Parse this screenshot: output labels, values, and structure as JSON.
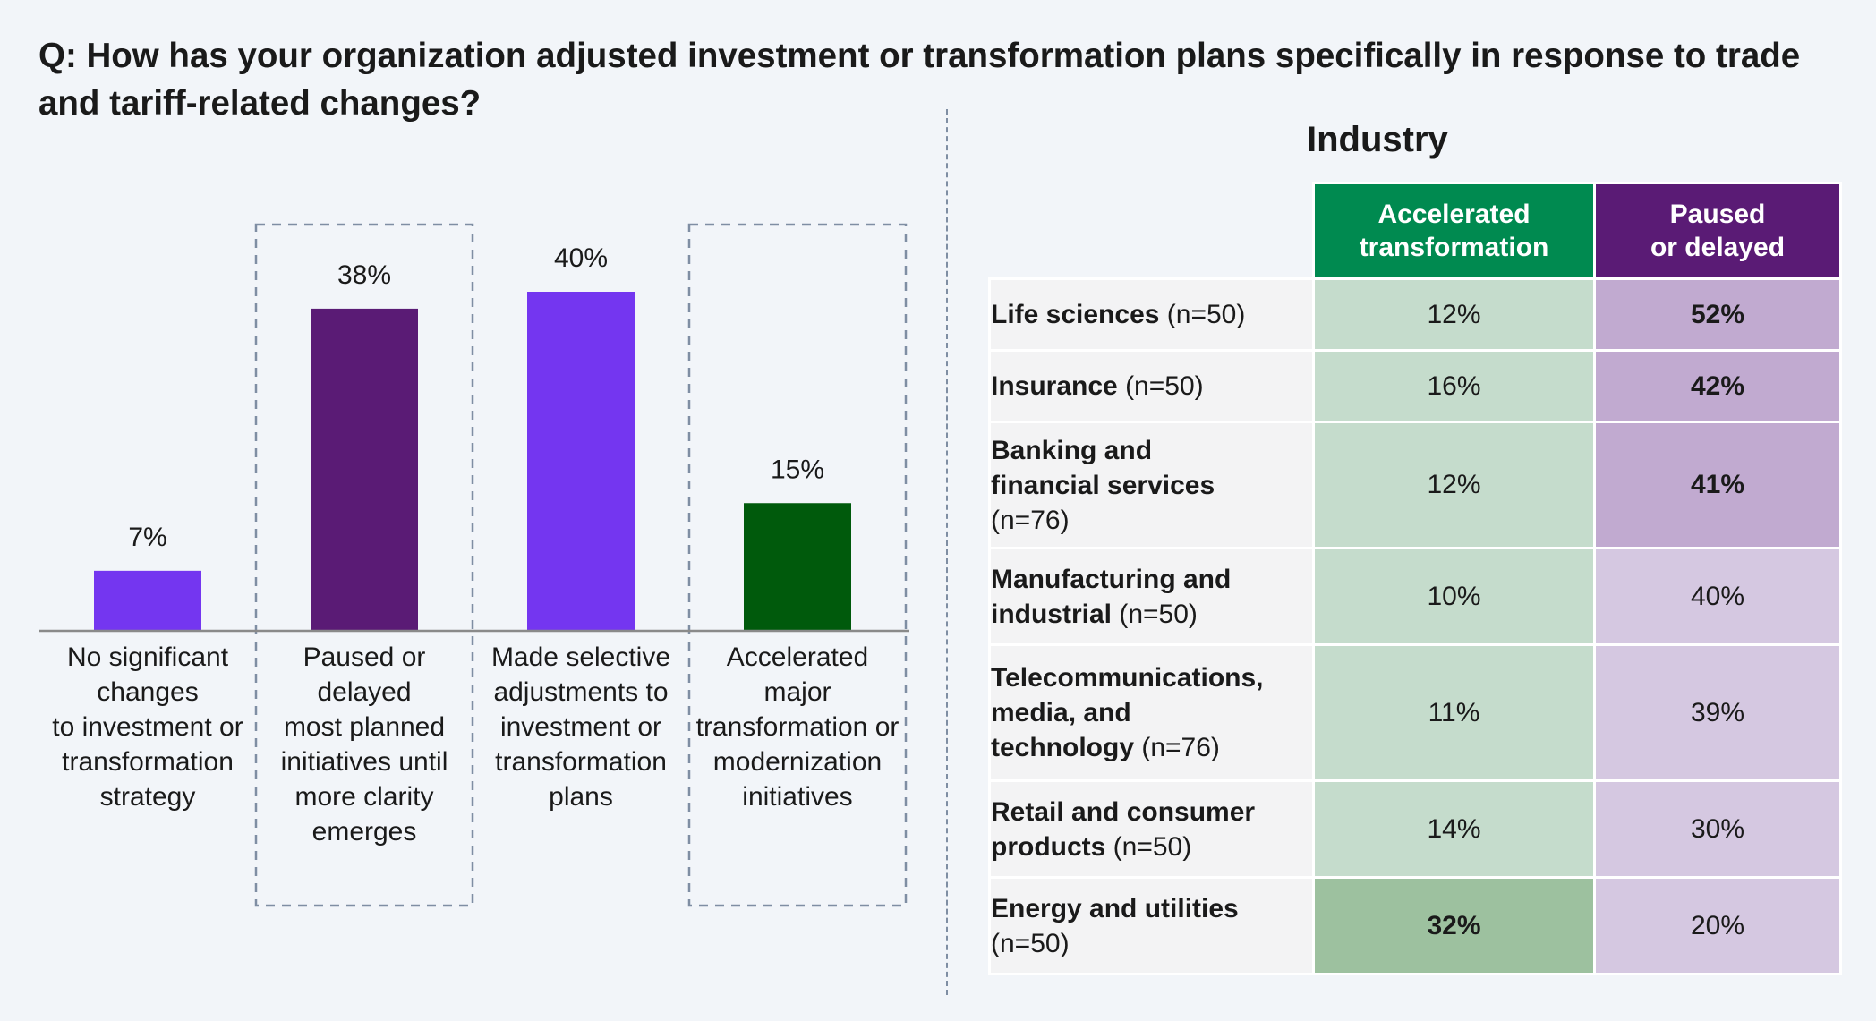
{
  "question": "Q: How has your organization adjusted investment or transformation plans specifically in response to trade and tariff-related changes?",
  "chart_data": [
    {
      "type": "bar",
      "categories": [
        "No significant changes to investment or transformation strategy",
        "Paused or delayed most planned initiatives until more clarity emerges",
        "Made selective adjustments to investment or transformation plans",
        "Accelerated major transformation or modernization initiatives"
      ],
      "category_lines": [
        [
          "No significant",
          "changes",
          "to investment or",
          "transformation",
          "strategy"
        ],
        [
          "Paused or",
          "delayed",
          "most planned",
          "initiatives until",
          "more clarity",
          "emerges"
        ],
        [
          "Made selective",
          "adjustments to",
          "investment or",
          "transformation",
          "plans"
        ],
        [
          "Accelerated",
          "major",
          "transformation or",
          "modernization",
          "initiatives"
        ]
      ],
      "values": [
        7,
        38,
        40,
        15
      ],
      "value_labels": [
        "7%",
        "38%",
        "40%",
        "15%"
      ],
      "colors": [
        "#7436f0",
        "#5a1b75",
        "#7436f0",
        "#005a0c"
      ],
      "highlighted": [
        false,
        true,
        false,
        true
      ],
      "ylim": [
        0,
        40
      ],
      "title": "",
      "xlabel": "",
      "ylabel": ""
    },
    {
      "type": "table",
      "title": "Industry",
      "columns": [
        {
          "label_lines": [
            "Accelerated",
            "transformation"
          ],
          "color": "#008a50"
        },
        {
          "label_lines": [
            "Paused",
            "or delayed"
          ],
          "color": "#5a1b75"
        }
      ],
      "rows": [
        {
          "name_lines": [
            "Life sciences"
          ],
          "n": "(n=50)",
          "n_inline": true,
          "values": [
            "12%",
            "52%"
          ],
          "bold": [
            false,
            true
          ],
          "bg": [
            "#c5dccc",
            "#c1aad0"
          ]
        },
        {
          "name_lines": [
            "Insurance"
          ],
          "n": "(n=50)",
          "n_inline": true,
          "values": [
            "16%",
            "42%"
          ],
          "bold": [
            false,
            true
          ],
          "bg": [
            "#c5dccc",
            "#c1aad0"
          ]
        },
        {
          "name_lines": [
            "Banking and",
            "financial services"
          ],
          "n": "(n=76)",
          "n_inline": false,
          "values": [
            "12%",
            "41%"
          ],
          "bold": [
            false,
            true
          ],
          "bg": [
            "#c5dccc",
            "#c1aad0"
          ]
        },
        {
          "name_lines": [
            "Manufacturing and",
            "industrial"
          ],
          "n": "(n=50)",
          "n_inline": true,
          "values": [
            "10%",
            "40%"
          ],
          "bold": [
            false,
            false
          ],
          "bg": [
            "#c5dccc",
            "#d5c8e1"
          ]
        },
        {
          "name_lines": [
            "Telecommunications,",
            "media, and",
            "technology"
          ],
          "n": "(n=76)",
          "n_inline": true,
          "values": [
            "11%",
            "39%"
          ],
          "bold": [
            false,
            false
          ],
          "bg": [
            "#c5dccc",
            "#d5c8e1"
          ]
        },
        {
          "name_lines": [
            "Retail and consumer",
            "products"
          ],
          "n": "(n=50)",
          "n_inline": true,
          "values": [
            "14%",
            "30%"
          ],
          "bold": [
            false,
            false
          ],
          "bg": [
            "#c5dccc",
            "#d5c8e1"
          ]
        },
        {
          "name_lines": [
            "Energy and utilities"
          ],
          "n": "(n=50)",
          "n_inline": false,
          "values": [
            "32%",
            "20%"
          ],
          "bold": [
            true,
            false
          ],
          "bg": [
            "#9dc19f",
            "#d5c8e1"
          ]
        }
      ]
    }
  ]
}
